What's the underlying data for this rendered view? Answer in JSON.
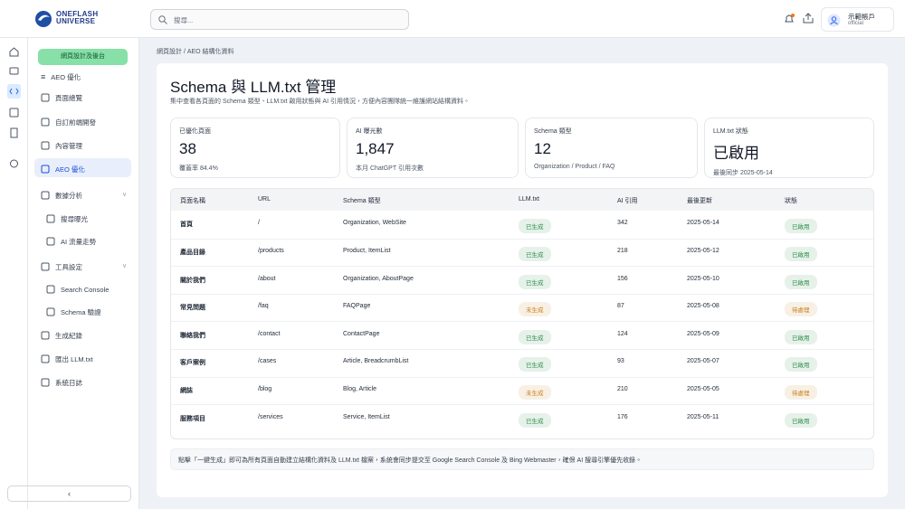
{
  "brand": {
    "line1": "ONEFLASH",
    "line2": "UNIVERSE"
  },
  "search_placeholder": "搜尋...",
  "user": {
    "name": "示範帳戶",
    "role": "official"
  },
  "sidebar": {
    "button": "網頁設計及後台",
    "section": "AEO 優化",
    "items": [
      "頁面總覽",
      "自訂前端開發",
      "內容管理",
      "AEO 優化",
      "數據分析",
      "搜尋曝光",
      "AI 流量走勢",
      "工具設定",
      "Search Console",
      "Schema 驗證",
      "生成紀錄",
      "匯出 LLM.txt",
      "系統日誌"
    ]
  },
  "breadcrumb": "網頁設計 / AEO 結構化資料",
  "title": "Schema 與 LLM.txt 管理",
  "subtitle": "集中查看各頁面的 Schema 類型、LLM.txt 啟用狀態與 AI 引用情況，方便內容團隊統一維護網站結構資料。",
  "cards": [
    {
      "label": "已優化頁面",
      "value": "38",
      "note": "覆蓋率 84.4%"
    },
    {
      "label": "AI 曝光數",
      "value": "1,847",
      "note": "本月 ChatGPT 引用次數"
    },
    {
      "label": "Schema 類型",
      "value": "12",
      "note": "Organization / Product / FAQ"
    },
    {
      "label": "LLM.txt 狀態",
      "value": "已啟用",
      "note": "最後同步 2025-05-14"
    }
  ],
  "table": {
    "headers": [
      "頁面名稱",
      "URL",
      "Schema 類型",
      "LLM.txt",
      "AI 引用",
      "最後更新",
      "狀態"
    ],
    "rows": [
      [
        "首頁",
        "/",
        "Organization, WebSite",
        {
          "text": "已生成",
          "color": "#2f8f4e"
        },
        "342",
        "2025-05-14",
        {
          "text": "已啟用",
          "color": "#2f8f4e"
        }
      ],
      [
        "產品目錄",
        "/products",
        "Product, ItemList",
        {
          "text": "已生成",
          "color": "#2f8f4e"
        },
        "218",
        "2025-05-12",
        {
          "text": "已啟用",
          "color": "#2f8f4e"
        }
      ],
      [
        "關於我們",
        "/about",
        "Organization, AboutPage",
        {
          "text": "已生成",
          "color": "#2f8f4e"
        },
        "156",
        "2025-05-10",
        {
          "text": "已啟用",
          "color": "#2f8f4e"
        }
      ],
      [
        "常見問題",
        "/faq",
        "FAQPage",
        {
          "text": "未生成",
          "color": "#c9821f"
        },
        "87",
        "2025-05-08",
        {
          "text": "待處理",
          "color": "#c9821f"
        }
      ],
      [
        "聯絡我們",
        "/contact",
        "ContactPage",
        {
          "text": "已生成",
          "color": "#2f8f4e"
        },
        "124",
        "2025-05-09",
        {
          "text": "已啟用",
          "color": "#2f8f4e"
        }
      ],
      [
        "客戶案例",
        "/cases",
        "Article, BreadcrumbList",
        {
          "text": "已生成",
          "color": "#2f8f4e"
        },
        "93",
        "2025-05-07",
        {
          "text": "已啟用",
          "color": "#2f8f4e"
        }
      ],
      [
        "網誌",
        "/blog",
        "Blog, Article",
        {
          "text": "未生成",
          "color": "#c9821f"
        },
        "210",
        "2025-05-05",
        {
          "text": "待處理",
          "color": "#c9821f"
        }
      ],
      [
        "服務項目",
        "/services",
        "Service, ItemList",
        {
          "text": "已生成",
          "color": "#2f8f4e"
        },
        "176",
        "2025-05-11",
        {
          "text": "已啟用",
          "color": "#2f8f4e"
        }
      ]
    ]
  },
  "footer_note": "點擊「一鍵生成」即可為所有頁面自動建立結構化資料及 LLM.txt 檔案，系統會同步提交至 Google Search Console 及 Bing Webmaster，確保 AI 搜尋引擎優先收錄。"
}
